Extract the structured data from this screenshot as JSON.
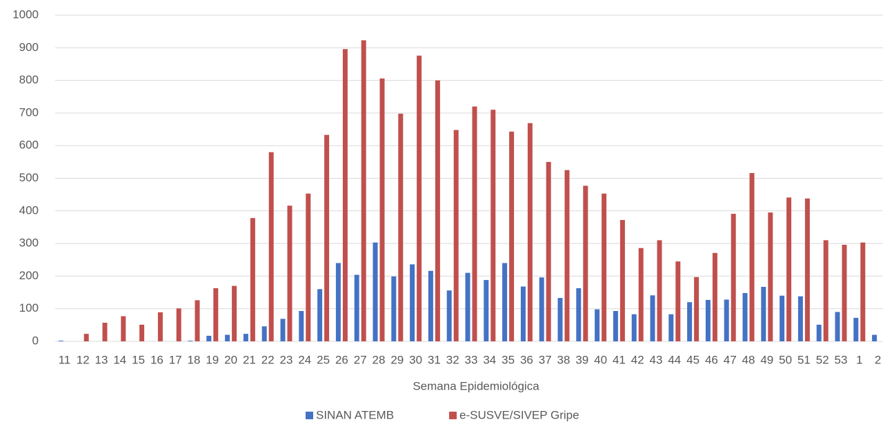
{
  "chart_data": {
    "type": "bar",
    "x_label": "Semana Epidemiológica",
    "categories": [
      "11",
      "12",
      "13",
      "14",
      "15",
      "16",
      "17",
      "18",
      "19",
      "20",
      "21",
      "22",
      "23",
      "24",
      "25",
      "26",
      "27",
      "28",
      "29",
      "30",
      "31",
      "32",
      "33",
      "34",
      "35",
      "36",
      "37",
      "38",
      "39",
      "40",
      "41",
      "42",
      "43",
      "44",
      "45",
      "46",
      "47",
      "48",
      "49",
      "50",
      "51",
      "52",
      "53",
      "1",
      "2"
    ],
    "series": [
      {
        "name": "SINAN ATEMB",
        "color": "#4472c4",
        "values": [
          2,
          0,
          0,
          0,
          0,
          0,
          0,
          2,
          17,
          20,
          23,
          46,
          69,
          93,
          160,
          240,
          204,
          303,
          199,
          236,
          216,
          156,
          210,
          188,
          240,
          168,
          196,
          133,
          163,
          98,
          93,
          83,
          141,
          83,
          120,
          127,
          128,
          148,
          167,
          140,
          138,
          51,
          90,
          72,
          20
        ]
      },
      {
        "name": "e-SUSVE/SIVEP Gripe",
        "color": "#c0504d",
        "values": [
          0,
          23,
          57,
          77,
          51,
          89,
          101,
          126,
          163,
          170,
          378,
          580,
          416,
          453,
          633,
          896,
          923,
          806,
          698,
          876,
          800,
          648,
          720,
          710,
          643,
          669,
          550,
          525,
          477,
          453,
          372,
          286,
          310,
          245,
          197,
          271,
          391,
          516,
          395,
          441,
          438,
          310,
          296,
          303,
          null
        ]
      }
    ],
    "ylim": [
      0,
      1000
    ],
    "yticks": [
      0,
      100,
      200,
      300,
      400,
      500,
      600,
      700,
      800,
      900,
      1000
    ],
    "grid": true,
    "legend": "bottom"
  }
}
